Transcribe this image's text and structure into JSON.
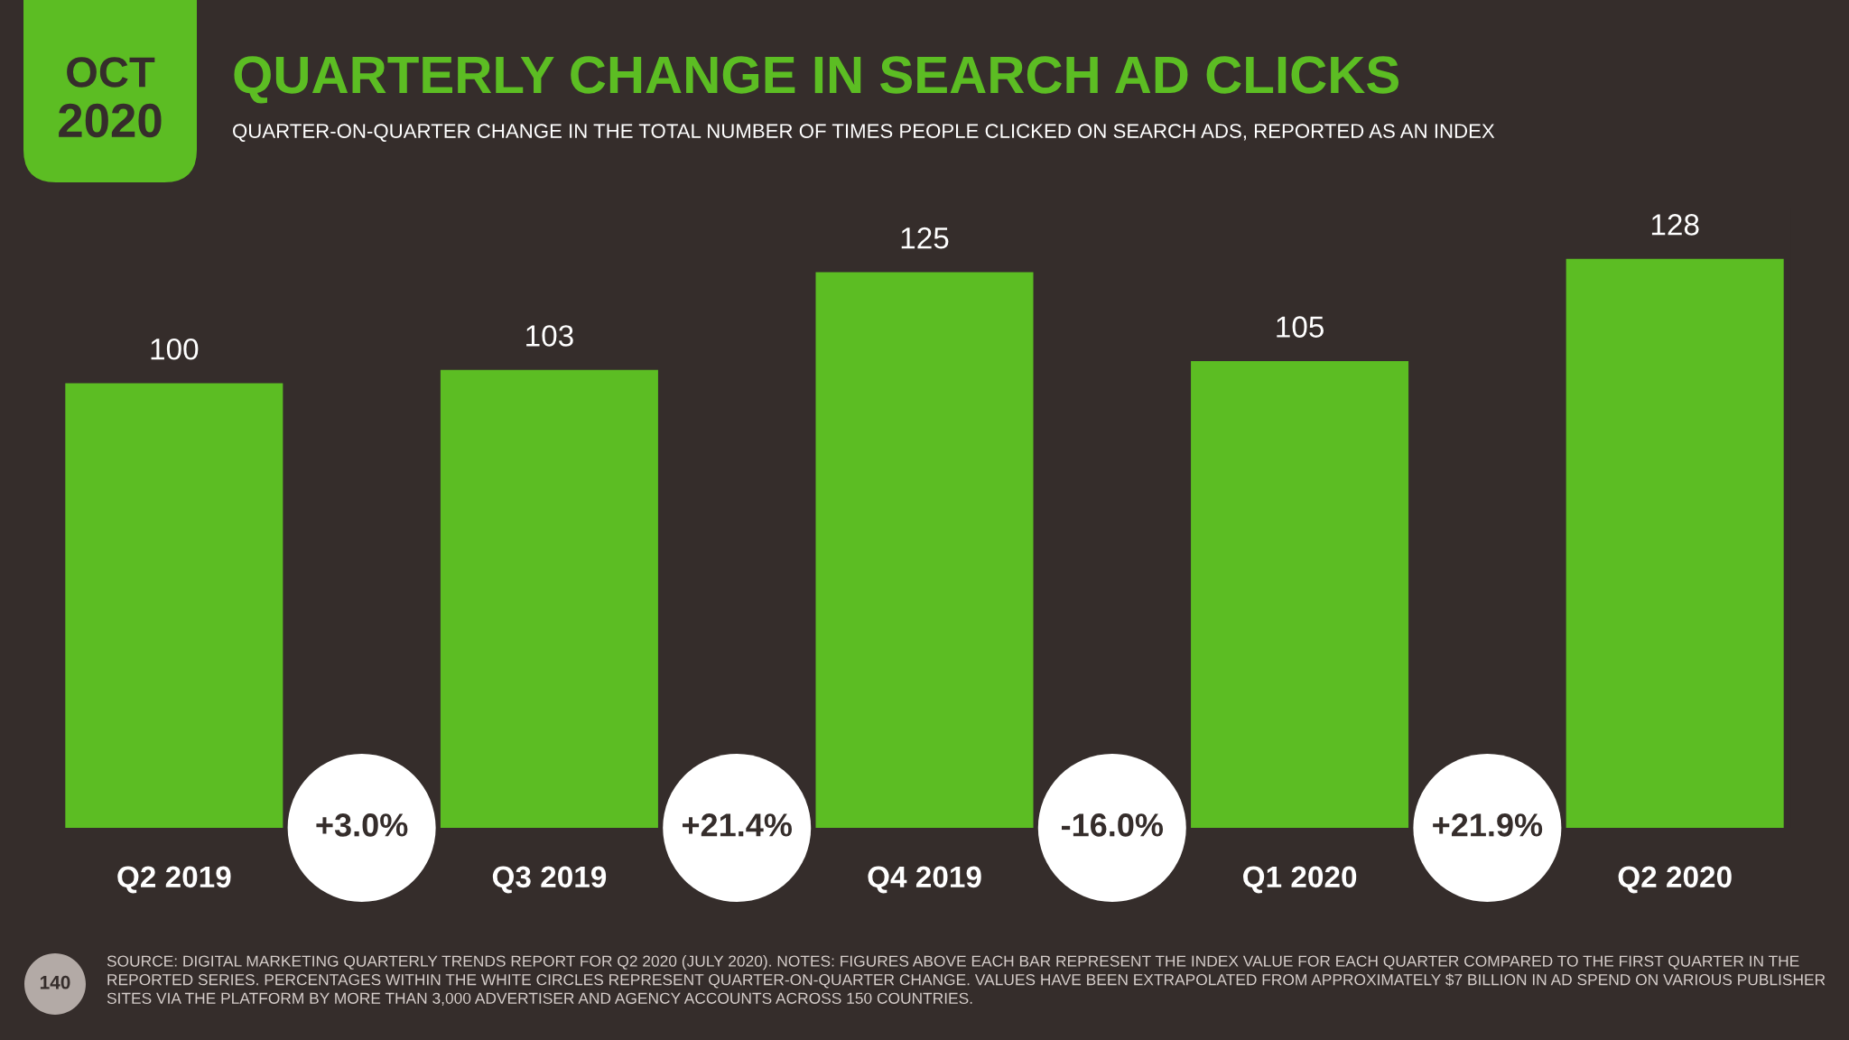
{
  "chart_data": {
    "type": "bar",
    "title": "QUARTERLY CHANGE IN SEARCH AD CLICKS",
    "subtitle": "QUARTER-ON-QUARTER CHANGE IN THE TOTAL NUMBER OF TIMES PEOPLE CLICKED ON SEARCH ADS, REPORTED AS AN INDEX",
    "categories": [
      "Q2 2019",
      "Q3 2019",
      "Q4 2019",
      "Q1 2020",
      "Q2 2020"
    ],
    "values": [
      100,
      103,
      125,
      105,
      128
    ],
    "color": "#5cbd23",
    "data_labels": true,
    "tick_labels": "x",
    "annotations": [
      "OCT",
      "2020",
      "+3.0%",
      "+21.4%",
      "-16.0%",
      "+21.9%",
      "140",
      "SOURCE: DIGITAL MARKETING QUARTERLY TRENDS REPORT FOR Q2 2020 (JULY 2020). NOTES: FIGURES ABOVE EACH BAR REPRESENT THE INDEX VALUE FOR EACH QUARTER COMPARED TO THE FIRST QUARTER IN THE REPORTED SERIES. PERCENTAGES WITHIN THE WHITE CIRCLES REPRESENT QUARTER-ON-QUARTER CHANGE. VALUES HAVE BEEN EXTRAPOLATED FROM APPROXIMATELY $7 BILLION IN AD SPEND ON VARIOUS PUBLISHER SITES VIA THE PLATFORM BY MORE THAN 3,000 ADVERTISER AND AGENCY ACCOUNTS ACROSS 150 COUNTRIES."
    ]
  }
}
